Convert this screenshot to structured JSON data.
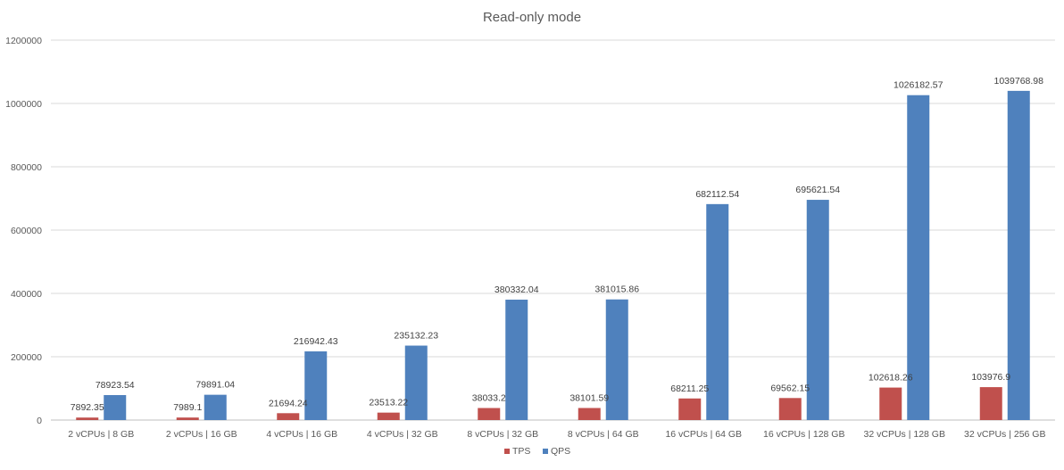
{
  "chart_data": {
    "type": "bar",
    "title": "Read-only mode",
    "xlabel": "",
    "ylabel": "",
    "ylim": [
      0,
      1200000
    ],
    "yticks": [
      0,
      200000,
      400000,
      600000,
      800000,
      1000000,
      1200000
    ],
    "grid": true,
    "legend_position": "bottom",
    "categories": [
      "2 vCPUs | 8 GB",
      "2 vCPUs | 16 GB",
      "4 vCPUs | 16 GB",
      "4 vCPUs | 32 GB",
      "8 vCPUs | 32 GB",
      "8 vCPUs | 64 GB",
      "16 vCPUs | 64 GB",
      "16 vCPUs | 128 GB",
      "32 vCPUs | 128 GB",
      "32 vCPUs | 256 GB"
    ],
    "series": [
      {
        "name": "TPS",
        "color": "#c0504d",
        "values": [
          7892.35,
          7989.1,
          21694.24,
          23513.22,
          38033.2,
          38101.59,
          68211.25,
          69562.15,
          102618.26,
          103976.9
        ],
        "labels": [
          "7892.35",
          "7989.1",
          "21694.24",
          "23513.22",
          "38033.2",
          "38101.59",
          "68211.25",
          "69562.15",
          "102618.26",
          "103976.9"
        ]
      },
      {
        "name": "QPS",
        "color": "#4f81bd",
        "values": [
          78923.54,
          79891.04,
          216942.43,
          235132.23,
          380332.04,
          381015.86,
          682112.54,
          695621.54,
          1026182.57,
          1039768.98
        ],
        "labels": [
          "78923.54",
          "79891.04",
          "216942.43",
          "235132.23",
          "380332.04",
          "381015.86",
          "682112.54",
          "695621.54",
          "1026182.57",
          "1039768.98"
        ]
      }
    ]
  }
}
